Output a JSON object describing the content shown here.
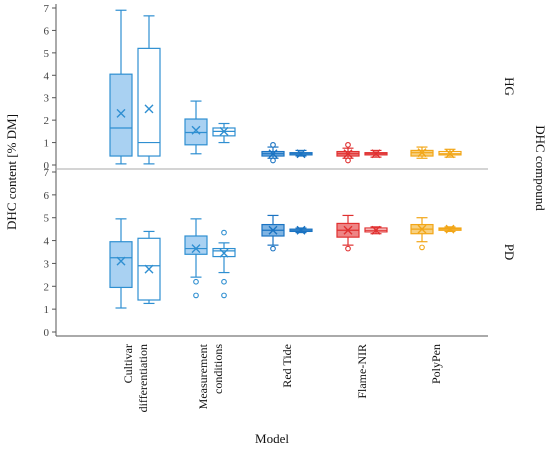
{
  "chart_data": {
    "type": "box",
    "ylabel": "DHC content [% DM]",
    "xlabel": "Model",
    "facet_label": "DHC compound",
    "categories": [
      "Cultivar differentiation",
      "Measurement conditions",
      "Red Tide",
      "Flame-NIR",
      "PolyPen"
    ],
    "category_lines": [
      [
        "Cultivar",
        "differentiation"
      ],
      [
        "Measurement",
        "conditions"
      ],
      [
        "Red Tide"
      ],
      [
        "Flame-NIR"
      ],
      [
        "PolyPen"
      ]
    ],
    "colors": [
      "#2f8fd1",
      "#2f8fd1",
      "#1a73c2",
      "#e03030",
      "#f2a617"
    ],
    "fills": [
      "#a9d1f2",
      "#a9d1f2",
      "#7fb4e3",
      "#ee8585",
      "#f7d080"
    ],
    "ylim": [
      0,
      7
    ],
    "yticks": [
      0,
      1,
      2,
      3,
      4,
      5,
      6,
      7
    ],
    "panels": [
      {
        "name": "HG",
        "boxes": [
          {
            "cat": 0,
            "filled": true,
            "min": 0.05,
            "q1": 0.4,
            "median": 1.65,
            "q3": 4.05,
            "max": 6.9,
            "mean": 2.3,
            "outliers": []
          },
          {
            "cat": 0,
            "filled": false,
            "min": 0.05,
            "q1": 0.4,
            "median": 1.0,
            "q3": 5.2,
            "max": 6.65,
            "mean": 2.5,
            "outliers": []
          },
          {
            "cat": 1,
            "filled": true,
            "min": 0.5,
            "q1": 0.9,
            "median": 1.45,
            "q3": 2.05,
            "max": 2.85,
            "mean": 1.55,
            "outliers": []
          },
          {
            "cat": 1,
            "filled": false,
            "min": 1.0,
            "q1": 1.3,
            "median": 1.5,
            "q3": 1.65,
            "max": 1.85,
            "mean": 1.5,
            "outliers": []
          },
          {
            "cat": 2,
            "filled": true,
            "min": 0.3,
            "q1": 0.4,
            "median": 0.5,
            "q3": 0.6,
            "max": 0.8,
            "mean": 0.5,
            "outliers": [
              0.9,
              0.2
            ]
          },
          {
            "cat": 2,
            "filled": false,
            "min": 0.4,
            "q1": 0.45,
            "median": 0.5,
            "q3": 0.55,
            "max": 0.65,
            "mean": 0.5,
            "outliers": []
          },
          {
            "cat": 3,
            "filled": true,
            "min": 0.3,
            "q1": 0.4,
            "median": 0.5,
            "q3": 0.6,
            "max": 0.75,
            "mean": 0.5,
            "outliers": [
              0.9,
              0.2
            ]
          },
          {
            "cat": 3,
            "filled": false,
            "min": 0.35,
            "q1": 0.45,
            "median": 0.5,
            "q3": 0.55,
            "max": 0.65,
            "mean": 0.5,
            "outliers": []
          },
          {
            "cat": 4,
            "filled": true,
            "min": 0.3,
            "q1": 0.4,
            "median": 0.55,
            "q3": 0.65,
            "max": 0.8,
            "mean": 0.55,
            "outliers": []
          },
          {
            "cat": 4,
            "filled": false,
            "min": 0.35,
            "q1": 0.45,
            "median": 0.5,
            "q3": 0.6,
            "max": 0.7,
            "mean": 0.5,
            "outliers": []
          }
        ]
      },
      {
        "name": "PD",
        "boxes": [
          {
            "cat": 0,
            "filled": true,
            "min": 1.05,
            "q1": 1.95,
            "median": 3.25,
            "q3": 3.95,
            "max": 4.95,
            "mean": 3.1,
            "outliers": []
          },
          {
            "cat": 0,
            "filled": false,
            "min": 1.25,
            "q1": 1.4,
            "median": 2.9,
            "q3": 4.1,
            "max": 4.4,
            "mean": 2.75,
            "outliers": []
          },
          {
            "cat": 1,
            "filled": true,
            "min": 2.4,
            "q1": 3.4,
            "median": 3.65,
            "q3": 4.2,
            "max": 4.95,
            "mean": 3.65,
            "outliers": [
              2.2,
              1.6
            ]
          },
          {
            "cat": 1,
            "filled": false,
            "min": 2.6,
            "q1": 3.3,
            "median": 3.55,
            "q3": 3.65,
            "max": 3.9,
            "mean": 3.45,
            "outliers": [
              4.35,
              2.2,
              1.6
            ]
          },
          {
            "cat": 2,
            "filled": true,
            "min": 3.8,
            "q1": 4.2,
            "median": 4.45,
            "q3": 4.7,
            "max": 5.1,
            "mean": 4.45,
            "outliers": [
              3.65
            ]
          },
          {
            "cat": 2,
            "filled": false,
            "min": 4.35,
            "q1": 4.4,
            "median": 4.45,
            "q3": 4.5,
            "max": 4.55,
            "mean": 4.45,
            "outliers": []
          },
          {
            "cat": 3,
            "filled": true,
            "min": 3.8,
            "q1": 4.15,
            "median": 4.45,
            "q3": 4.75,
            "max": 5.1,
            "mean": 4.45,
            "outliers": [
              3.65
            ]
          },
          {
            "cat": 3,
            "filled": false,
            "min": 4.3,
            "q1": 4.38,
            "median": 4.45,
            "q3": 4.55,
            "max": 4.6,
            "mean": 4.45,
            "outliers": []
          },
          {
            "cat": 4,
            "filled": true,
            "min": 3.95,
            "q1": 4.3,
            "median": 4.5,
            "q3": 4.7,
            "max": 5.0,
            "mean": 4.5,
            "outliers": [
              3.7
            ]
          },
          {
            "cat": 4,
            "filled": false,
            "min": 4.4,
            "q1": 4.45,
            "median": 4.5,
            "q3": 4.55,
            "max": 4.6,
            "mean": 4.5,
            "outliers": []
          }
        ]
      }
    ]
  }
}
